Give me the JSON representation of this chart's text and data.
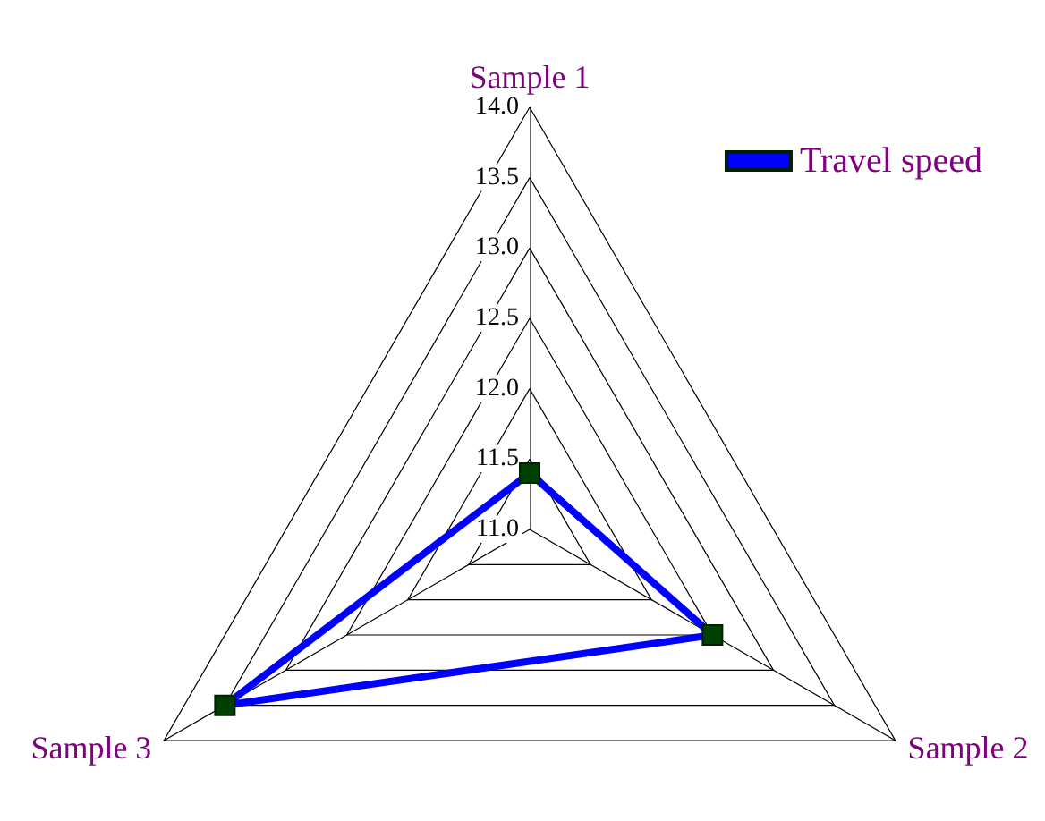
{
  "chart_data": {
    "type": "radar",
    "categories": [
      "Sample 1",
      "Sample 2",
      "Sample 3"
    ],
    "series": [
      {
        "name": "Travel speed",
        "color": "#0000ff",
        "values": [
          11.4,
          12.5,
          13.5
        ]
      }
    ],
    "ylim": [
      11,
      14
    ],
    "yticks": [
      {
        "value": 11,
        "label": "11.0"
      },
      {
        "value": 11.5,
        "label": "11.5"
      },
      {
        "value": 12,
        "label": "12.0"
      },
      {
        "value": 12.5,
        "label": "12.5"
      },
      {
        "value": 13,
        "label": "13.0"
      },
      {
        "value": 13.5,
        "label": "13.5"
      },
      {
        "value": 14,
        "label": "14.0"
      }
    ],
    "legend": "top right",
    "marker": "square",
    "line_style": "solid"
  }
}
